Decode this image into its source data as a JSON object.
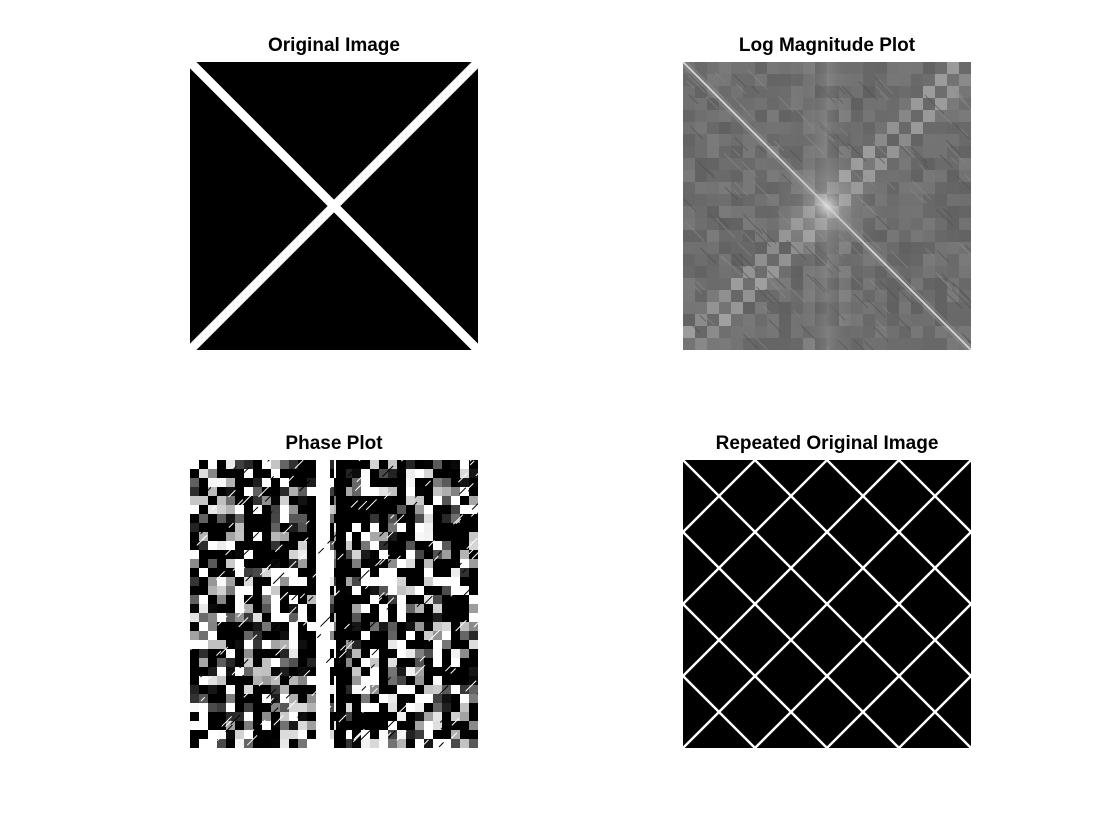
{
  "figure": {
    "background": "#ffffff",
    "subplots": [
      {
        "title": "Original Image"
      },
      {
        "title": "Log Magnitude Plot"
      },
      {
        "title": "Phase Plot"
      },
      {
        "title": "Repeated Original Image"
      }
    ]
  },
  "colors": {
    "image_black": "#000000",
    "image_white": "#ffffff",
    "magnitude_gray": "#6e6e6e"
  }
}
